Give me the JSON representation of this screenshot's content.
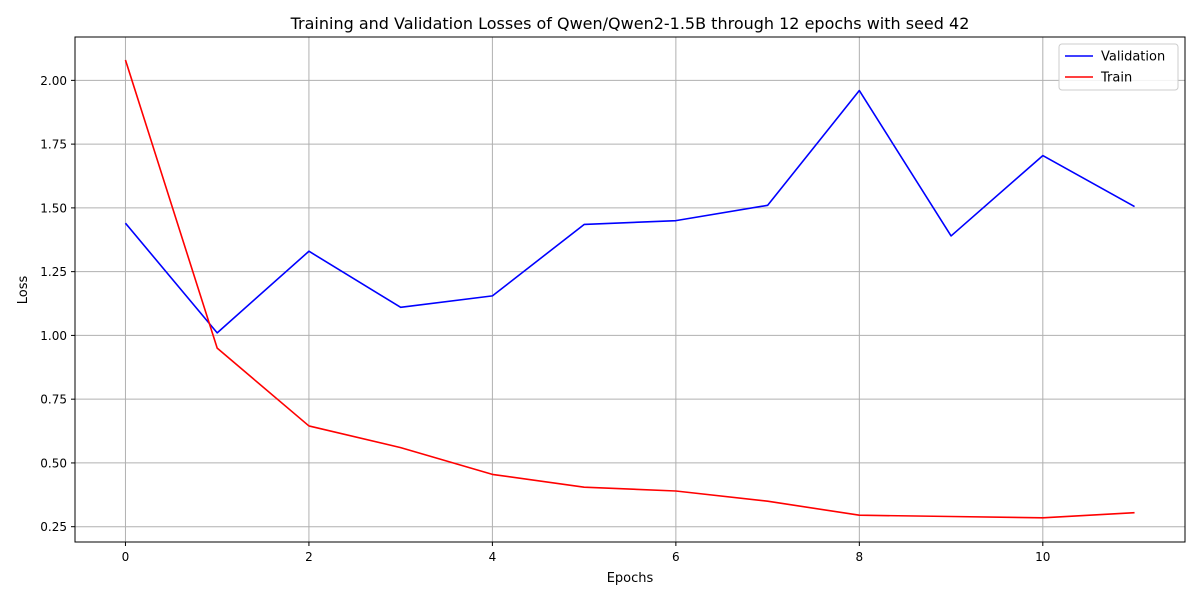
{
  "chart_data": {
    "type": "line",
    "title": "Training and Validation Losses of Qwen/Qwen2-1.5B through 12 epochs with seed 42",
    "xlabel": "Epochs",
    "ylabel": "Loss",
    "xlim": [
      -0.55,
      11.55
    ],
    "ylim": [
      0.19,
      2.17
    ],
    "xticks": [
      0,
      2,
      4,
      6,
      8,
      10
    ],
    "yticks": [
      0.25,
      0.5,
      0.75,
      1.0,
      1.25,
      1.5,
      1.75,
      2.0
    ],
    "ytick_labels": [
      "0.25",
      "0.50",
      "0.75",
      "1.00",
      "1.25",
      "1.50",
      "1.75",
      "2.00"
    ],
    "grid": true,
    "legend_position": "top-right",
    "x": [
      0,
      1,
      2,
      3,
      4,
      5,
      6,
      7,
      8,
      9,
      10,
      11
    ],
    "series": [
      {
        "name": "Validation",
        "color": "#0000ff",
        "values": [
          1.44,
          1.01,
          1.33,
          1.11,
          1.155,
          1.435,
          1.45,
          1.51,
          1.96,
          1.39,
          1.705,
          1.505
        ]
      },
      {
        "name": "Train",
        "color": "#ff0000",
        "values": [
          2.08,
          0.95,
          0.645,
          0.56,
          0.455,
          0.405,
          0.39,
          0.35,
          0.295,
          0.29,
          0.285,
          0.305
        ]
      }
    ]
  }
}
